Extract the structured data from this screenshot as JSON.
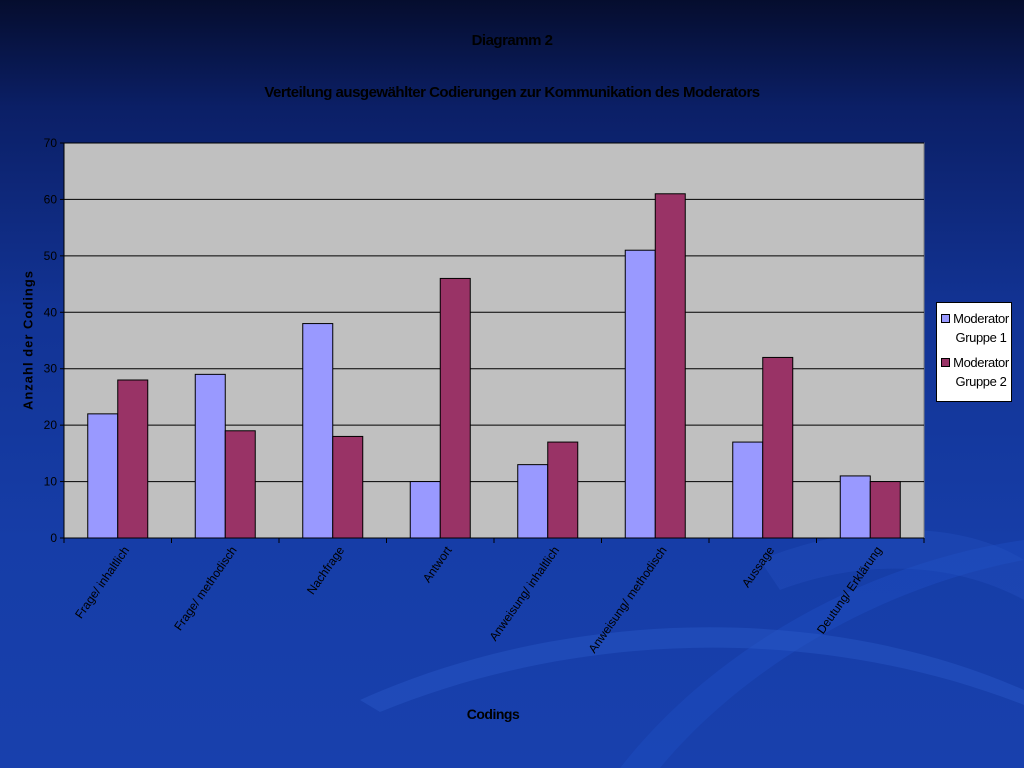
{
  "chart_data": {
    "type": "bar",
    "title": "Diagramm 2",
    "subtitle": "Verteilung ausgewählter Codierungen zur Kommunikation des Moderators",
    "xlabel": "Codings",
    "ylabel": "Anzahl der Codings",
    "ylim": [
      0,
      70
    ],
    "yticks": [
      "0",
      "10",
      "20",
      "30",
      "40",
      "50",
      "60",
      "70"
    ],
    "grid": true,
    "legend_position": "right",
    "categories": [
      "Frage/ inhaltlich",
      "Frage/ methodisch",
      "Nachfrage",
      "Antwort",
      "Anweisung/ inhaltlich",
      "Anweisung/ methodisch",
      "Aussage",
      "Deutung/ Erklärung"
    ],
    "series": [
      {
        "name": "Moderator Gruppe 1",
        "color": "#9999ff",
        "values": [
          22,
          29,
          38,
          10,
          13,
          51,
          17,
          11
        ]
      },
      {
        "name": "Moderator Gruppe 2",
        "color": "#993366",
        "values": [
          28,
          19,
          18,
          46,
          17,
          61,
          32,
          10
        ]
      }
    ],
    "plot_background": "#c0c0c0"
  }
}
